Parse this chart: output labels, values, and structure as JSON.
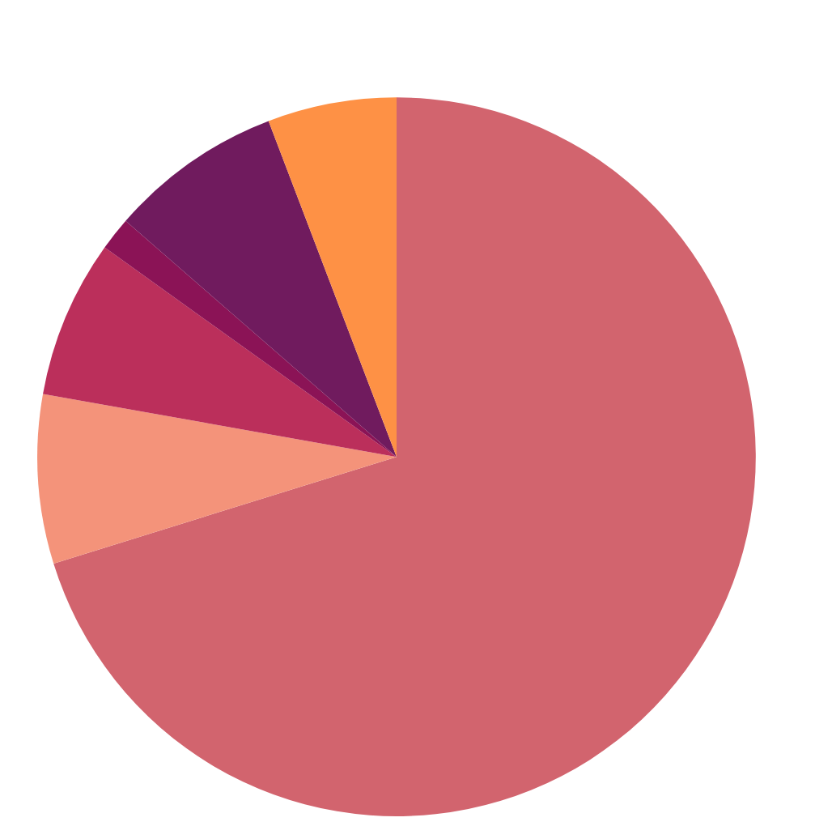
{
  "chart_data": {
    "type": "pie",
    "categories": [
      null,
      null,
      null,
      null,
      null,
      null
    ],
    "values": [
      70.2,
      7.6,
      7.1,
      1.5,
      7.8,
      5.8
    ],
    "colors": [
      "#d2646e",
      "#f4937a",
      "#bb2f5b",
      "#8b1356",
      "#701b5e",
      "#fe9145"
    ],
    "legend": false
  }
}
